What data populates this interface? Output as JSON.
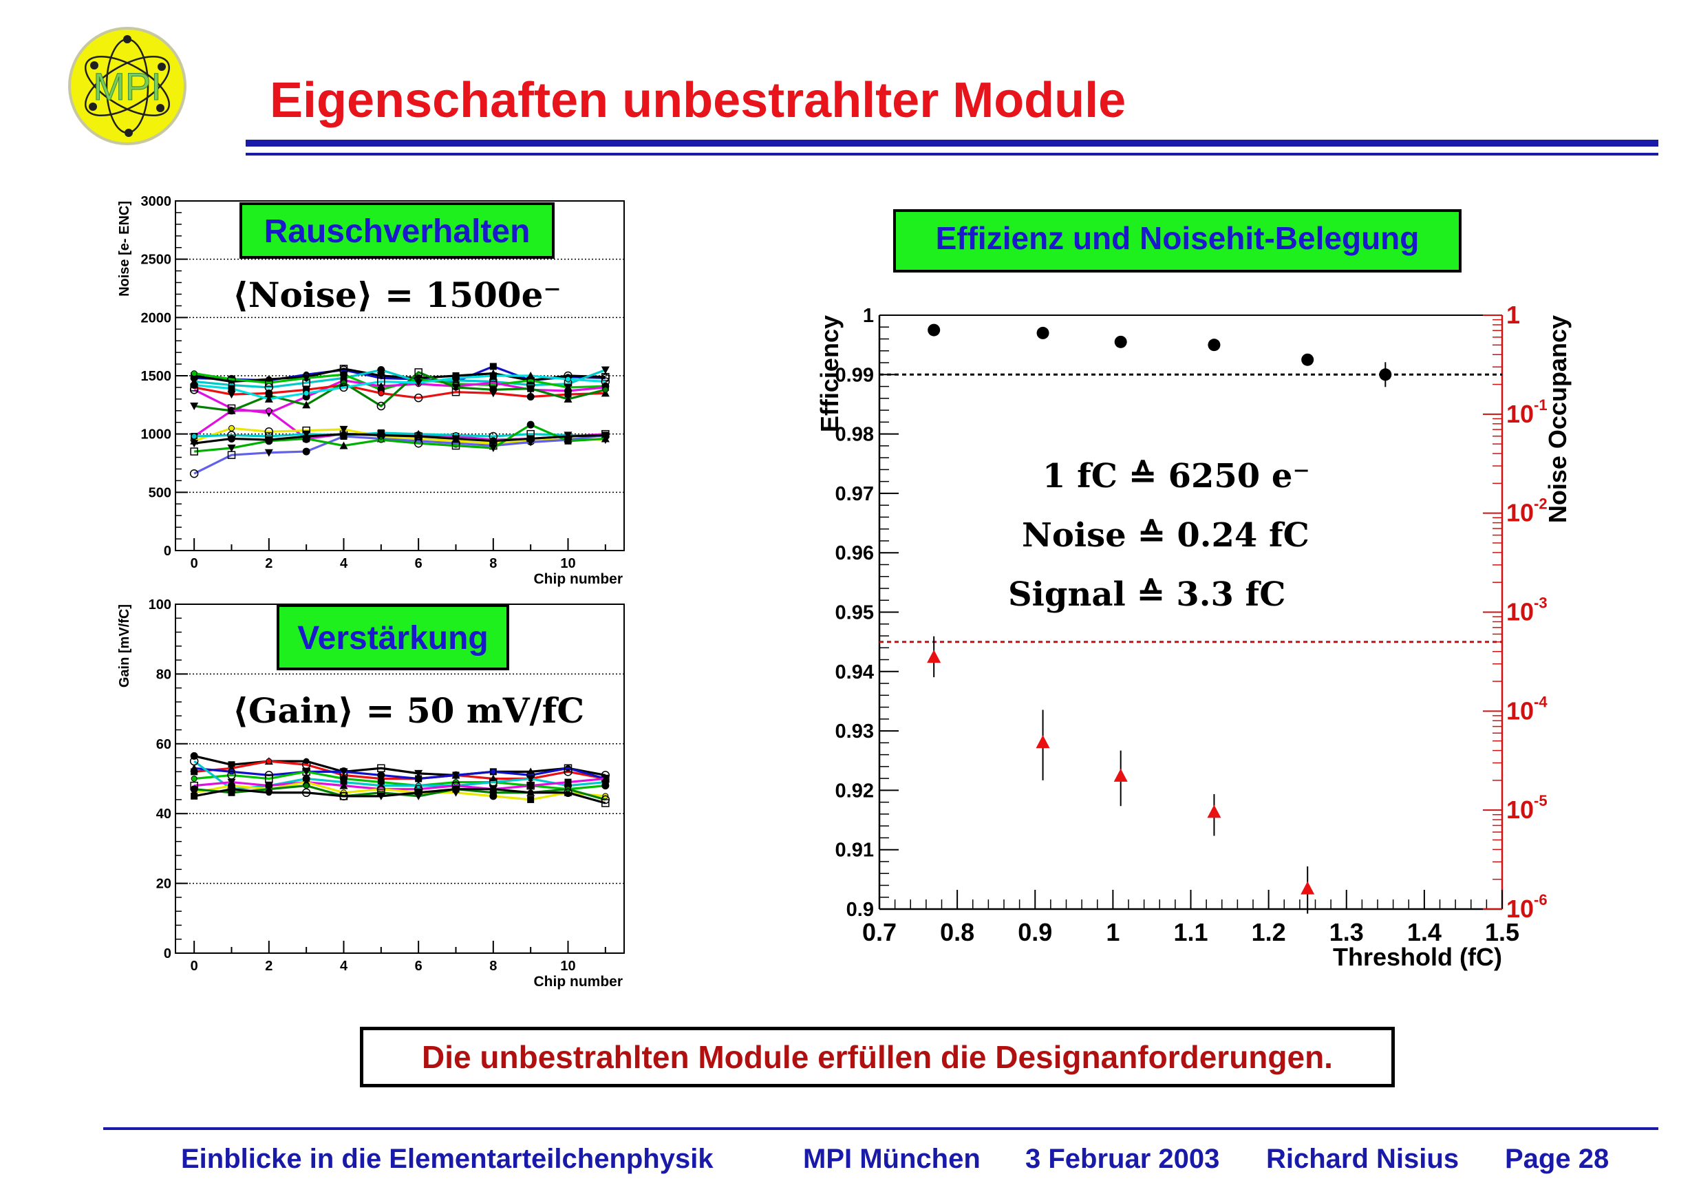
{
  "slide": {
    "logo_text": "MPI",
    "title": "Eigenschaften unbestrahlter Module",
    "conclusion": "Die unbestrahlten Module erfüllen die Designanforderungen.",
    "footer": {
      "course": "Einblicke in die Elementarteilchenphysik",
      "institute": "MPI München",
      "date": "3 Februar 2003",
      "author": "Richard Nisius",
      "page": "Page 28"
    }
  },
  "chart_data": [
    {
      "type": "line",
      "label_box": "Rauschverhalten",
      "annotation": "⟨Noise⟩ = 1500e⁻",
      "xlabel": "Chip number",
      "ylabel": "Noise [e- ENC]",
      "xlim": [
        -0.5,
        11.5
      ],
      "ylim": [
        0,
        3000
      ],
      "x_ticks": [
        0,
        2,
        4,
        6,
        8,
        10
      ],
      "y_ticks": [
        0,
        500,
        1000,
        1500,
        2000,
        2500,
        3000
      ],
      "grid": "horizontal-dotted",
      "x": [
        0,
        1,
        2,
        3,
        4,
        5,
        6,
        7,
        8,
        9,
        10,
        11
      ],
      "series": [
        {
          "color": "#1010c8",
          "values": [
            1480,
            1470,
            1460,
            1510,
            1550,
            1480,
            1470,
            1450,
            1580,
            1460,
            1490,
            1480
          ]
        },
        {
          "color": "#000000",
          "values": [
            1500,
            1450,
            1470,
            1490,
            1560,
            1500,
            1480,
            1500,
            1520,
            1460,
            1500,
            1490
          ]
        },
        {
          "color": "#00c8c8",
          "values": [
            1450,
            1420,
            1400,
            1440,
            1480,
            1550,
            1450,
            1460,
            1450,
            1420,
            1430,
            1550
          ]
        },
        {
          "color": "#00c000",
          "values": [
            1520,
            1470,
            1440,
            1480,
            1510,
            1380,
            1470,
            1430,
            1420,
            1460,
            1400,
            1410
          ]
        },
        {
          "color": "#e010e0",
          "values": [
            1380,
            1220,
            1180,
            1320,
            1460,
            1410,
            1430,
            1410,
            1440,
            1380,
            1370,
            1400
          ]
        },
        {
          "color": "#e81010",
          "values": [
            1400,
            1340,
            1350,
            1380,
            1420,
            1350,
            1310,
            1360,
            1350,
            1320,
            1340,
            1350
          ]
        },
        {
          "color": "#008000",
          "values": [
            1240,
            1200,
            1330,
            1250,
            1440,
            1240,
            1530,
            1400,
            1380,
            1390,
            1300,
            1380
          ]
        },
        {
          "color": "#00e0e0",
          "values": [
            1420,
            1390,
            1300,
            1350,
            1400,
            1450,
            1440,
            1480,
            1500,
            1500,
            1470,
            1450
          ]
        },
        {
          "color": "#e010e0",
          "values": [
            980,
            1200,
            1200,
            960,
            1000,
            1000,
            990,
            980,
            950,
            960,
            980,
            1000
          ]
        },
        {
          "color": "#e8e800",
          "values": [
            940,
            1050,
            1020,
            1030,
            1040,
            980,
            960,
            940,
            920,
            940,
            960,
            950
          ]
        },
        {
          "color": "#00c8c8",
          "values": [
            980,
            990,
            980,
            1000,
            990,
            1010,
            1000,
            990,
            980,
            1000,
            990,
            980
          ]
        },
        {
          "color": "#6060e8",
          "values": [
            660,
            820,
            840,
            850,
            980,
            960,
            940,
            920,
            900,
            930,
            950,
            990
          ]
        },
        {
          "color": "#00b000",
          "values": [
            850,
            880,
            940,
            960,
            900,
            950,
            920,
            900,
            880,
            1080,
            940,
            960
          ]
        },
        {
          "color": "#000000",
          "values": [
            920,
            960,
            950,
            980,
            1000,
            990,
            980,
            960,
            940,
            960,
            980,
            990
          ]
        }
      ]
    },
    {
      "type": "line",
      "label_box": "Verstärkung",
      "annotation": "⟨Gain⟩ = 50 mV/fC",
      "xlabel": "Chip number",
      "ylabel": "Gain [mV/fC]",
      "xlim": [
        -0.5,
        11.5
      ],
      "ylim": [
        0,
        100
      ],
      "x_ticks": [
        0,
        2,
        4,
        6,
        8,
        10
      ],
      "y_ticks": [
        0,
        20,
        40,
        60,
        80,
        100
      ],
      "grid": "horizontal-dotted",
      "x": [
        0,
        1,
        2,
        3,
        4,
        5,
        6,
        7,
        8,
        9,
        10,
        11
      ],
      "series": [
        {
          "color": "#000000",
          "values": [
            56.5,
            54,
            55,
            55,
            52,
            53,
            51.5,
            51,
            52,
            52,
            53,
            51
          ]
        },
        {
          "color": "#e81010",
          "values": [
            52,
            53,
            55,
            54,
            51,
            50,
            50,
            51,
            50,
            50,
            52,
            50
          ]
        },
        {
          "color": "#1010c8",
          "values": [
            53,
            52,
            51,
            52,
            52,
            51,
            50,
            51,
            52,
            51,
            53,
            50
          ]
        },
        {
          "color": "#00c000",
          "values": [
            50,
            51,
            50,
            52,
            50,
            49,
            48,
            49,
            49,
            48,
            47,
            48
          ]
        },
        {
          "color": "#00c8c8",
          "values": [
            55,
            47,
            48,
            50,
            49,
            48,
            48,
            48,
            49,
            50,
            48,
            49
          ]
        },
        {
          "color": "#e010e0",
          "values": [
            48,
            49,
            48,
            49,
            48,
            47,
            47,
            48,
            47,
            48,
            49,
            50
          ]
        },
        {
          "color": "#e8e800",
          "values": [
            46,
            48,
            47,
            49,
            46,
            47,
            46,
            46,
            45,
            44,
            46,
            45
          ]
        },
        {
          "color": "#008000",
          "values": [
            47,
            46,
            47,
            48,
            45,
            46,
            45,
            47,
            46,
            46,
            47,
            44
          ]
        },
        {
          "color": "#000000",
          "values": [
            45,
            47,
            46,
            46,
            45,
            45,
            46,
            47,
            47,
            46,
            46,
            43
          ]
        }
      ]
    },
    {
      "type": "scatter",
      "label_box": "Effizienz und Noisehit-Belegung",
      "annotations": [
        "1 fC ≙ 6250 e⁻",
        "Noise ≙ 0.24 fC",
        "Signal ≙ 3.3 fC"
      ],
      "xlabel": "Threshold (fC)",
      "ylabel_left": "Efficiency",
      "ylabel_right": "Noise Occupancy",
      "xlim": [
        0.7,
        1.5
      ],
      "ylim_left": [
        0.9,
        1.0
      ],
      "ylim_right_log": [
        1e-06,
        1
      ],
      "x_ticks": [
        0.7,
        0.8,
        0.9,
        1,
        1.1,
        1.2,
        1.3,
        1.4,
        1.5
      ],
      "y_ticks_left": [
        0.9,
        0.91,
        0.92,
        0.93,
        0.94,
        0.95,
        0.96,
        0.97,
        0.98,
        0.99,
        1
      ],
      "y_ticks_right": [
        "10^-6",
        "10^-5",
        "10^-4",
        "10^-3",
        "10^-2",
        "10^-1",
        "1"
      ],
      "reference_lines": [
        {
          "axis": "left",
          "value": 0.99,
          "color": "#000000"
        },
        {
          "axis": "right",
          "value": 0.0005,
          "color": "#c81010"
        }
      ],
      "series": [
        {
          "axis": "left",
          "marker": "circle",
          "color": "#000000",
          "x": [
            0.77,
            0.91,
            1.01,
            1.13,
            1.25,
            1.35
          ],
          "y": [
            0.9975,
            0.997,
            0.9955,
            0.995,
            0.9925,
            0.99
          ]
        },
        {
          "axis": "right",
          "marker": "triangle",
          "color": "#e81010",
          "x": [
            0.77,
            0.91,
            1.01,
            1.13,
            1.25
          ],
          "y": [
            0.00035,
            4.8e-05,
            2.2e-05,
            9.5e-06,
            1.6e-06
          ],
          "err_lo": [
            0.00013,
            2.8e-05,
            1.1e-05,
            4e-06,
            7e-07
          ],
          "err_hi": [
            0.00022,
            5.5e-05,
            1.8e-05,
            5e-06,
            1.1e-06
          ]
        }
      ]
    }
  ]
}
